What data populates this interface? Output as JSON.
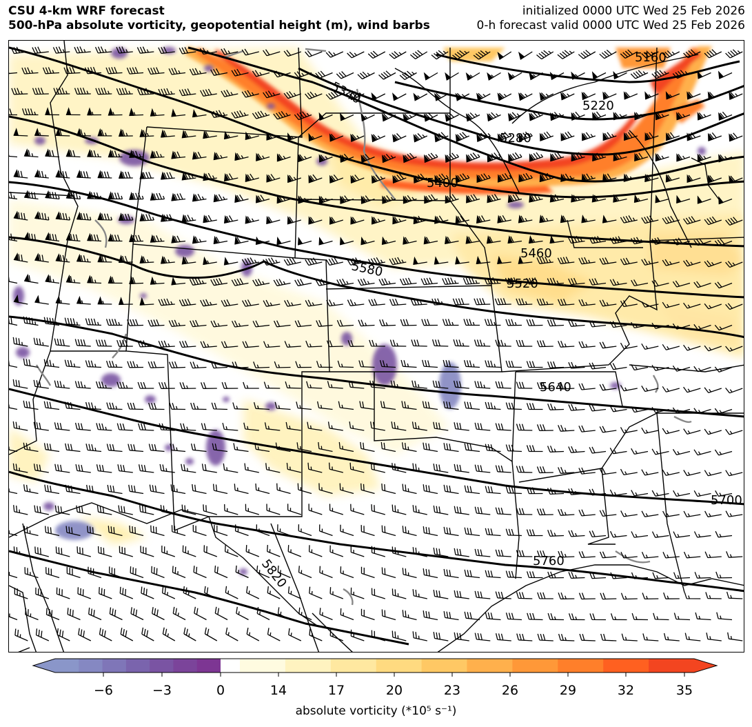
{
  "header": {
    "line1": "CSU 4-km WRF forecast",
    "line2": "500-hPa absolute vorticity, geopotential height (m), wind barbs",
    "init": "initialized 0000 UTC Wed 25 Feb 2026",
    "valid": "0-h forecast valid 0000 UTC Wed 25 Feb 2026"
  },
  "colorbar": {
    "label": "absolute vorticity (*10⁵ s⁻¹)",
    "ticks": [
      "−6",
      "−3",
      "0",
      "14",
      "17",
      "20",
      "23",
      "26",
      "29",
      "32",
      "35"
    ],
    "colors": {
      "negative": [
        "#8a96c9",
        "#8588c2",
        "#7f76b8",
        "#7a64ad",
        "#7a54a3",
        "#7b449a",
        "#7d3693"
      ],
      "zero": "#ffffff",
      "positive": [
        "#fffbe0",
        "#fff3c0",
        "#ffe8a0",
        "#ffda80",
        "#ffc864",
        "#ffb04c",
        "#ff9838",
        "#ff7f2a",
        "#ff6020",
        "#f34520"
      ]
    }
  },
  "contour_labels": [
    "5160",
    "5220",
    "5280",
    "5340",
    "5400",
    "5460",
    "5520",
    "5580",
    "5640",
    "5700",
    "5760",
    "5820"
  ],
  "colors": {
    "contour": "#000000",
    "barb": "#000000",
    "border": "#000000",
    "lake_outline": "#888888"
  }
}
